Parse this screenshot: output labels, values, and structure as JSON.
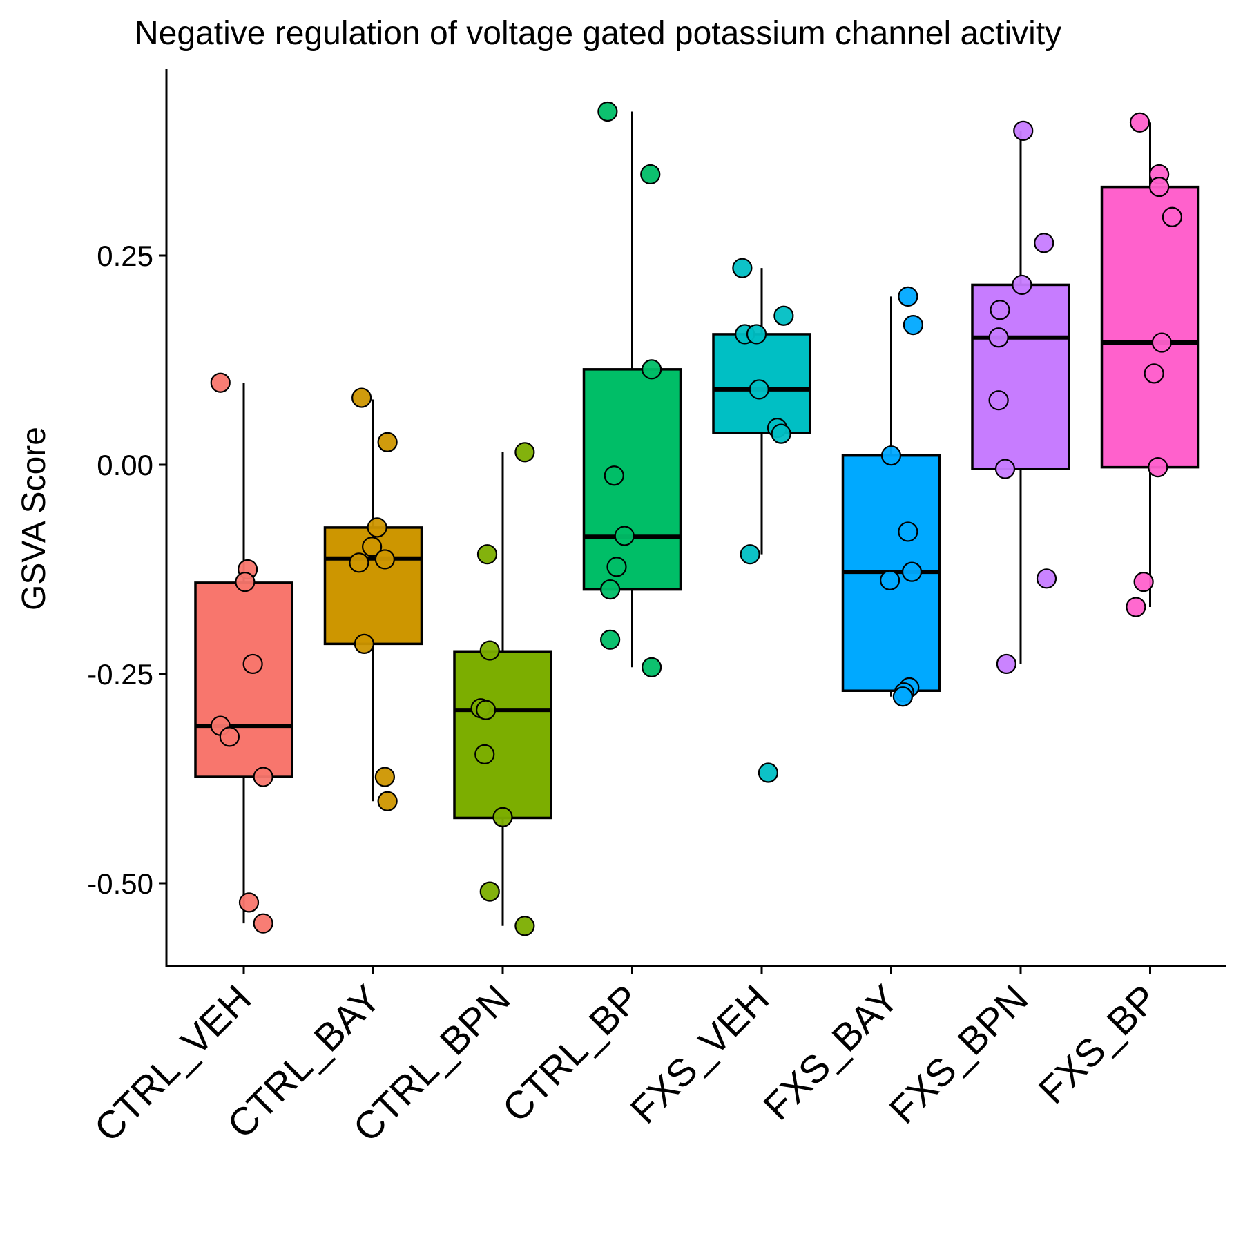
{
  "chart_data": {
    "type": "box",
    "title": "Negative regulation of voltage gated potassium channel activity",
    "xlabel": "",
    "ylabel": "GSVA Score",
    "ylim": [
      -0.6,
      0.47
    ],
    "yticks": [
      0.25,
      0.0,
      -0.25,
      -0.5
    ],
    "ytick_labels": [
      "0.25",
      "0.00",
      "-0.25",
      "-0.50"
    ],
    "categories": [
      "CTRL_VEH",
      "CTRL_BAY",
      "CTRL_BPN",
      "CTRL_BP",
      "FXS_VEH",
      "FXS_BAY",
      "FXS_BPN",
      "FXS_BP"
    ],
    "colors": [
      "#F8766D",
      "#CD9600",
      "#7CAE00",
      "#00BE67",
      "#00BFC4",
      "#00A9FF",
      "#C77CFF",
      "#FF61CC"
    ],
    "boxes": [
      {
        "whisker_low": -0.548,
        "q1": -0.373,
        "median": -0.312,
        "q3": -0.141,
        "whisker_high": 0.098
      },
      {
        "whisker_low": -0.402,
        "q1": -0.214,
        "median": -0.112,
        "q3": -0.075,
        "whisker_high": 0.078
      },
      {
        "whisker_low": -0.551,
        "q1": -0.422,
        "median": -0.293,
        "q3": -0.223,
        "whisker_high": 0.015
      },
      {
        "whisker_low": -0.242,
        "q1": -0.149,
        "median": -0.086,
        "q3": 0.114,
        "whisker_high": 0.422
      },
      {
        "whisker_low": -0.107,
        "q1": 0.038,
        "median": 0.09,
        "q3": 0.156,
        "whisker_high": 0.235
      },
      {
        "whisker_low": -0.277,
        "q1": -0.27,
        "median": -0.128,
        "q3": 0.011,
        "whisker_high": 0.201
      },
      {
        "whisker_low": -0.238,
        "q1": -0.005,
        "median": 0.152,
        "q3": 0.215,
        "whisker_high": 0.399
      },
      {
        "whisker_low": -0.17,
        "q1": -0.003,
        "median": 0.146,
        "q3": 0.332,
        "whisker_high": 0.409
      }
    ],
    "points": [
      [
        {
          "j": -0.18,
          "y": 0.098
        },
        {
          "j": 0.03,
          "y": -0.125
        },
        {
          "j": 0.01,
          "y": -0.14
        },
        {
          "j": 0.07,
          "y": -0.238
        },
        {
          "j": -0.18,
          "y": -0.312
        },
        {
          "j": -0.11,
          "y": -0.325
        },
        {
          "j": 0.15,
          "y": -0.373
        },
        {
          "j": 0.04,
          "y": -0.523
        },
        {
          "j": 0.15,
          "y": -0.548
        }
      ],
      [
        {
          "j": -0.09,
          "y": 0.08
        },
        {
          "j": 0.11,
          "y": 0.027
        },
        {
          "j": 0.03,
          "y": -0.075
        },
        {
          "j": -0.01,
          "y": -0.098
        },
        {
          "j": -0.11,
          "y": -0.117
        },
        {
          "j": 0.09,
          "y": -0.113
        },
        {
          "j": -0.07,
          "y": -0.214
        },
        {
          "j": 0.09,
          "y": -0.373
        },
        {
          "j": 0.11,
          "y": -0.402
        }
      ],
      [
        {
          "j": 0.17,
          "y": 0.015
        },
        {
          "j": -0.12,
          "y": -0.107
        },
        {
          "j": -0.1,
          "y": -0.222
        },
        {
          "j": -0.17,
          "y": -0.291
        },
        {
          "j": -0.13,
          "y": -0.293
        },
        {
          "j": -0.14,
          "y": -0.346
        },
        {
          "j": 0.0,
          "y": -0.421
        },
        {
          "j": -0.1,
          "y": -0.51
        },
        {
          "j": 0.17,
          "y": -0.551
        }
      ],
      [
        {
          "j": -0.19,
          "y": 0.422
        },
        {
          "j": 0.14,
          "y": 0.347
        },
        {
          "j": 0.15,
          "y": 0.114
        },
        {
          "j": -0.14,
          "y": -0.013
        },
        {
          "j": -0.06,
          "y": -0.085
        },
        {
          "j": -0.12,
          "y": -0.122
        },
        {
          "j": -0.17,
          "y": -0.149
        },
        {
          "j": -0.17,
          "y": -0.209
        },
        {
          "j": 0.15,
          "y": -0.242
        }
      ],
      [
        {
          "j": -0.15,
          "y": 0.235
        },
        {
          "j": 0.17,
          "y": 0.178
        },
        {
          "j": -0.13,
          "y": 0.156
        },
        {
          "j": -0.04,
          "y": 0.156
        },
        {
          "j": -0.02,
          "y": 0.09
        },
        {
          "j": 0.12,
          "y": 0.044
        },
        {
          "j": 0.15,
          "y": 0.037
        },
        {
          "j": -0.09,
          "y": -0.107
        },
        {
          "j": 0.05,
          "y": -0.368
        }
      ],
      [
        {
          "j": 0.13,
          "y": 0.201
        },
        {
          "j": 0.17,
          "y": 0.167
        },
        {
          "j": 0.0,
          "y": 0.011
        },
        {
          "j": 0.13,
          "y": -0.08
        },
        {
          "j": 0.16,
          "y": -0.128
        },
        {
          "j": -0.01,
          "y": -0.138
        },
        {
          "j": 0.14,
          "y": -0.266
        },
        {
          "j": 0.1,
          "y": -0.272
        },
        {
          "j": 0.09,
          "y": -0.277
        }
      ],
      [
        {
          "j": 0.02,
          "y": 0.399
        },
        {
          "j": 0.18,
          "y": 0.265
        },
        {
          "j": 0.01,
          "y": 0.215
        },
        {
          "j": -0.16,
          "y": 0.185
        },
        {
          "j": -0.17,
          "y": 0.152
        },
        {
          "j": -0.17,
          "y": 0.077
        },
        {
          "j": -0.12,
          "y": -0.005
        },
        {
          "j": 0.2,
          "y": -0.136
        },
        {
          "j": -0.11,
          "y": -0.238
        }
      ],
      [
        {
          "j": -0.08,
          "y": 0.409
        },
        {
          "j": 0.07,
          "y": 0.347
        },
        {
          "j": 0.07,
          "y": 0.332
        },
        {
          "j": 0.17,
          "y": 0.296
        },
        {
          "j": 0.09,
          "y": 0.146
        },
        {
          "j": 0.03,
          "y": 0.109
        },
        {
          "j": 0.06,
          "y": -0.003
        },
        {
          "j": -0.05,
          "y": -0.14
        },
        {
          "j": -0.11,
          "y": -0.17
        }
      ]
    ],
    "grid": false,
    "legend": "none"
  }
}
